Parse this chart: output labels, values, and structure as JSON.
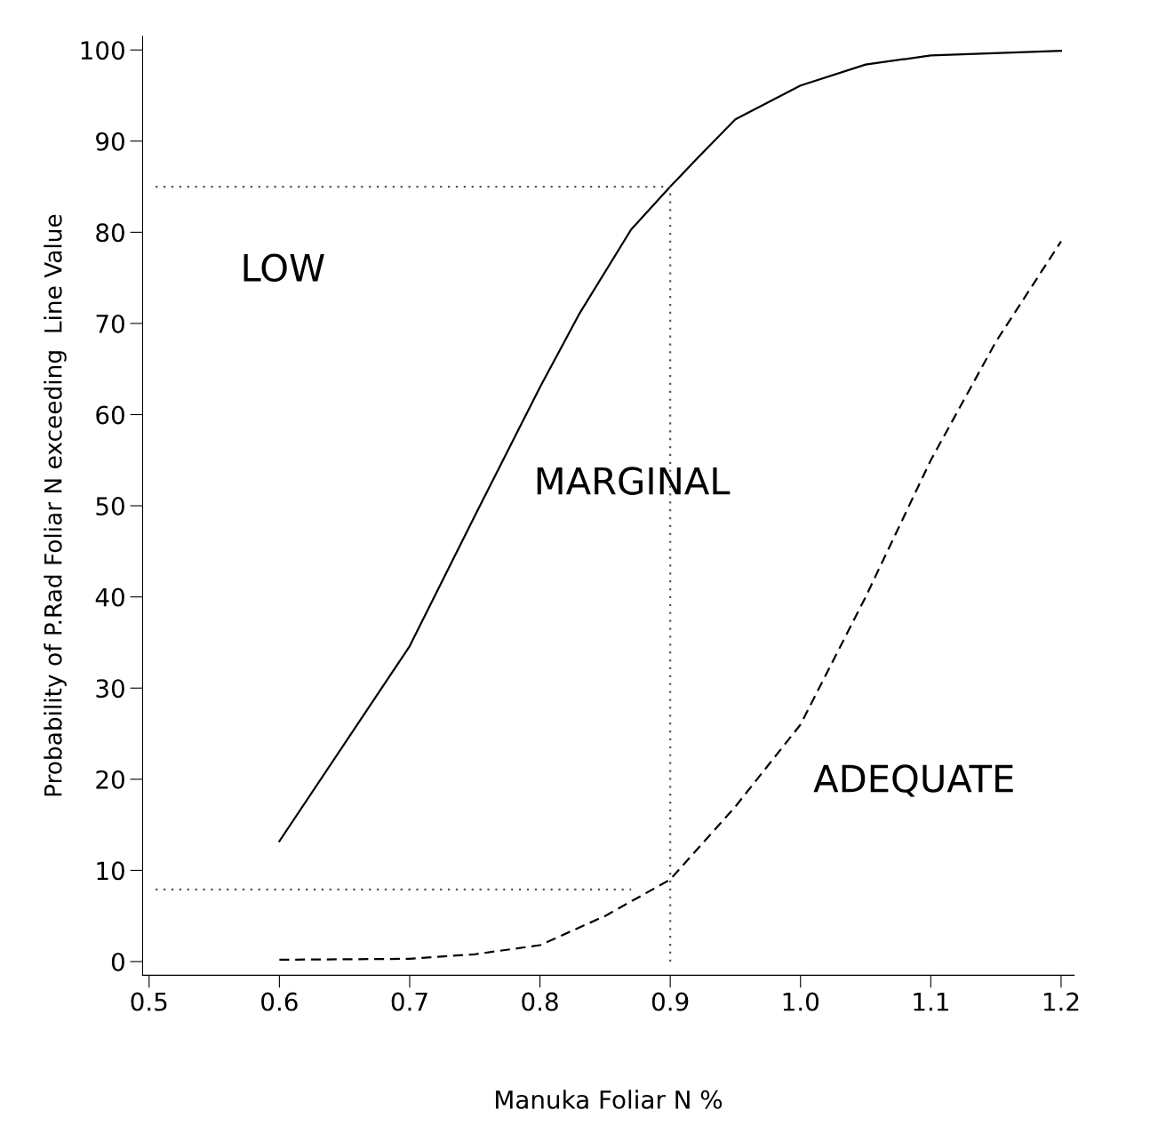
{
  "chart_data": {
    "type": "line",
    "xlabel": "Manuka Foliar N %",
    "ylabel": "Probability of P.Rad Foliar N exceeding  Line Value",
    "xlim": [
      0.495,
      1.21
    ],
    "ylim": [
      -1.5,
      101.5
    ],
    "xticks": [
      {
        "value": 0.5,
        "label": "0.5"
      },
      {
        "value": 0.6,
        "label": "0.6"
      },
      {
        "value": 0.7,
        "label": "0.7"
      },
      {
        "value": 0.8,
        "label": "0.8"
      },
      {
        "value": 0.9,
        "label": "0.9"
      },
      {
        "value": 1.0,
        "label": "1.0"
      },
      {
        "value": 1.1,
        "label": "1.1"
      },
      {
        "value": 1.2,
        "label": "1.2"
      }
    ],
    "yticks": [
      0,
      10,
      20,
      30,
      40,
      50,
      60,
      70,
      80,
      90,
      100
    ],
    "grid": false,
    "marker": "none",
    "series": [
      {
        "color": "#000000",
        "line_style": "solid",
        "x": [
          0.6,
          0.7,
          0.75,
          0.8,
          0.83,
          0.87,
          0.9,
          0.92,
          0.95,
          1.0,
          1.05,
          1.1,
          1.2
        ],
        "values": [
          13.2,
          34.6,
          48.9,
          63,
          71,
          80.3,
          85,
          88,
          92.4,
          96.1,
          98.4,
          99.4,
          99.9
        ]
      },
      {
        "color": "#000000",
        "line_style": "dashed",
        "x": [
          0.6,
          0.7,
          0.75,
          0.8,
          0.85,
          0.9,
          0.95,
          1.0,
          1.05,
          1.1,
          1.15,
          1.2
        ],
        "values": [
          0.2,
          0.3,
          0.8,
          1.8,
          5,
          9,
          17,
          26,
          40,
          55,
          68,
          79
        ]
      },
      {
        "color": "#555555",
        "line_style": "dotted",
        "x": [
          0.505,
          0.9
        ],
        "values": [
          85,
          85
        ]
      },
      {
        "color": "#555555",
        "line_style": "dotted",
        "x": [
          0.9,
          0.9
        ],
        "values": [
          0,
          85
        ]
      },
      {
        "color": "#555555",
        "line_style": "dotted",
        "x": [
          0.505,
          0.87
        ],
        "values": [
          7.9,
          7.9
        ]
      }
    ],
    "annotations": [
      "LOW",
      "MARGINAL",
      "ADEQUATE"
    ]
  }
}
